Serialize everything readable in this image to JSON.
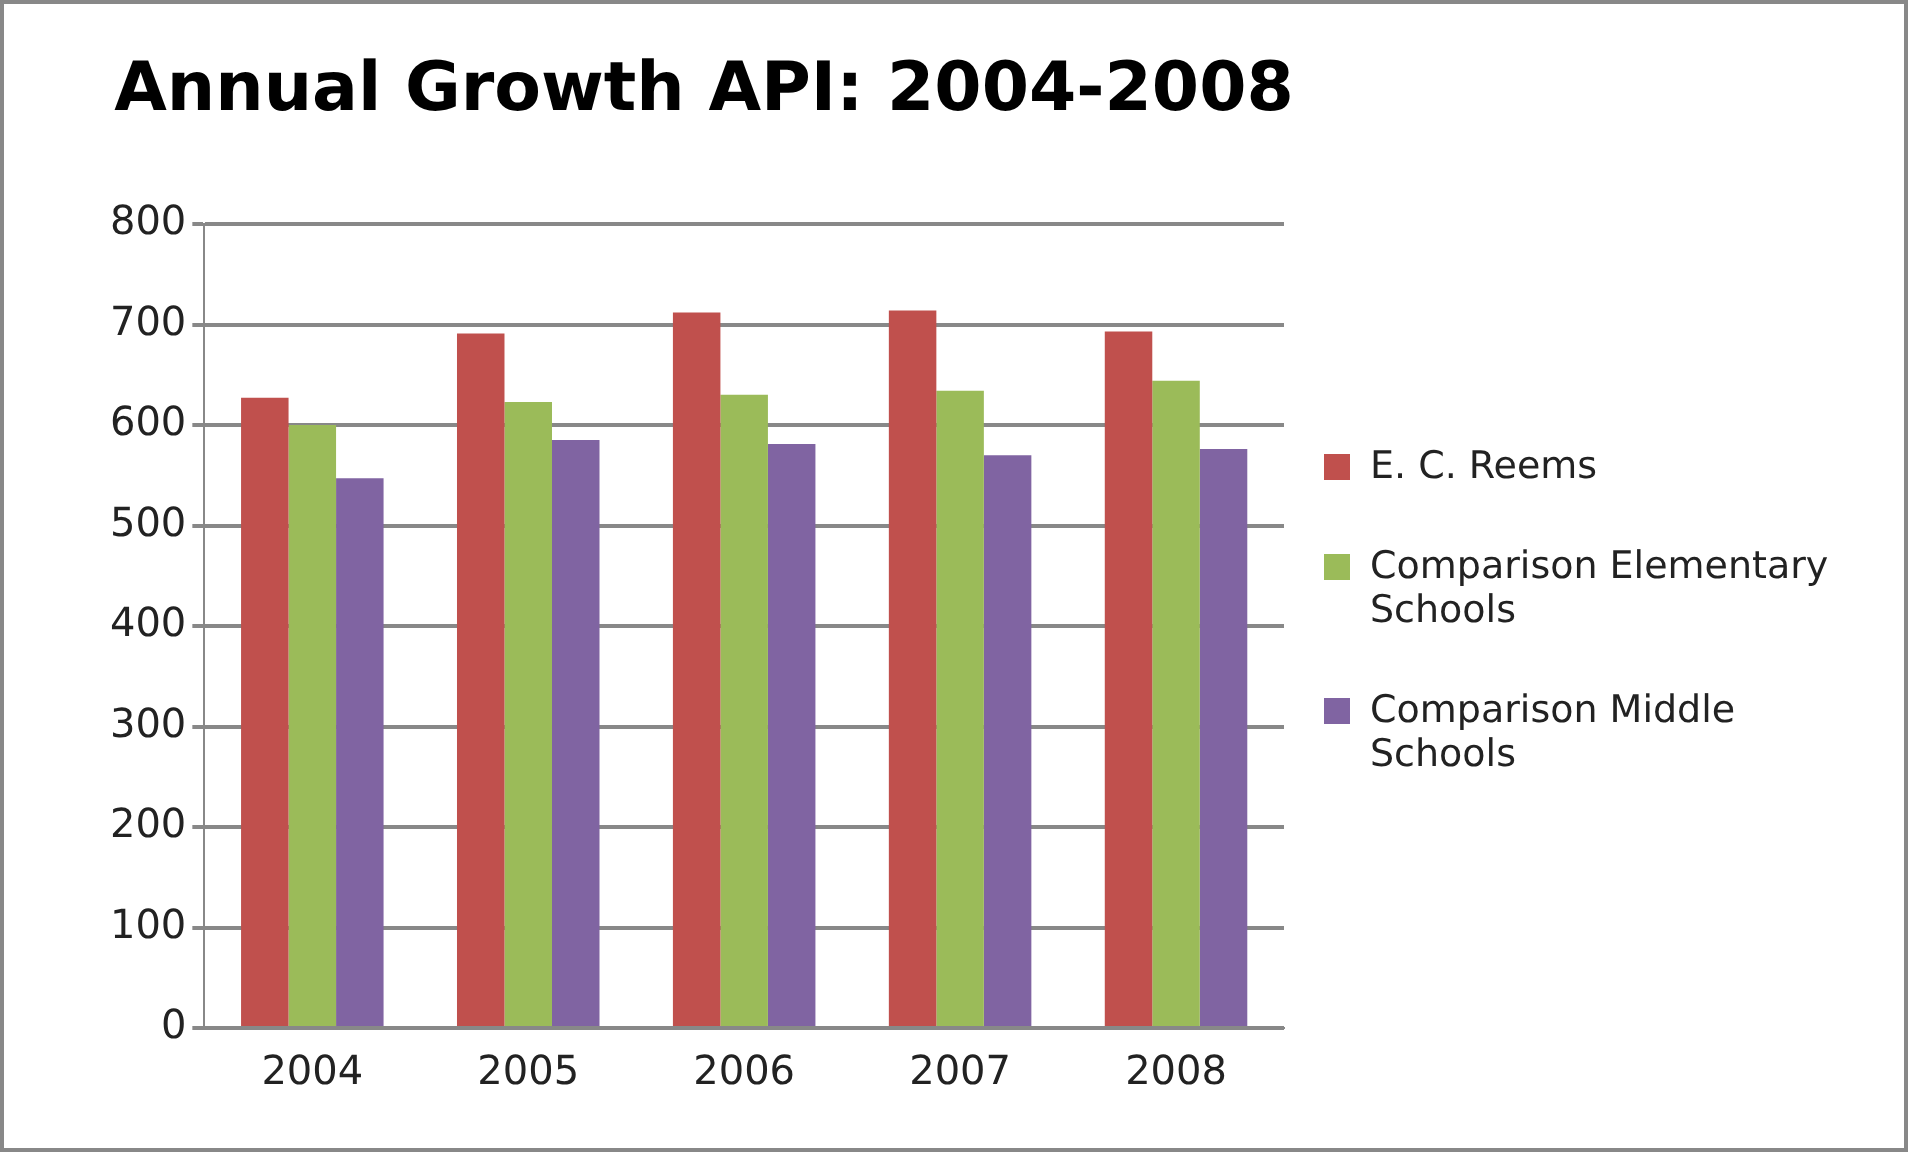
{
  "chart_data": {
    "type": "bar",
    "title": "Annual Growth API: 2004-2008",
    "categories": [
      "2004",
      "2005",
      "2006",
      "2007",
      "2008"
    ],
    "series": [
      {
        "name": "E. C. Reems",
        "color": "#c0504d",
        "values": [
          627,
          691,
          712,
          714,
          693
        ]
      },
      {
        "name": "Comparison Elementary Schools",
        "color": "#9bbb59",
        "values": [
          600,
          623,
          630,
          634,
          644
        ]
      },
      {
        "name": "Comparison Middle Schools",
        "color": "#8064a2",
        "values": [
          547,
          585,
          581,
          570,
          576
        ]
      }
    ],
    "ylim": [
      0,
      800
    ],
    "yticks": [
      0,
      100,
      200,
      300,
      400,
      500,
      600,
      700,
      800
    ],
    "grid": "y",
    "legend": "right"
  }
}
